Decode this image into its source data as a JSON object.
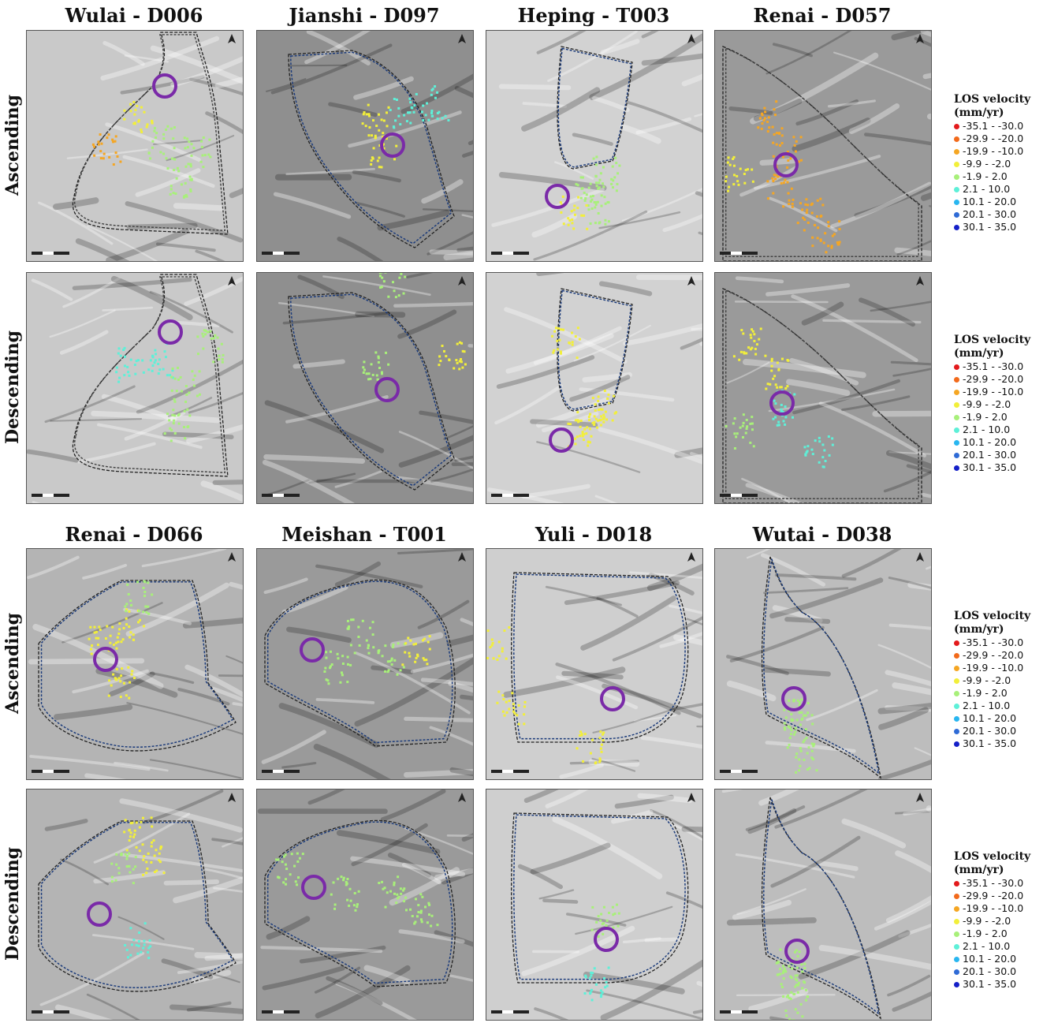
{
  "blocks": [
    {
      "titles": [
        "Wulai - D006",
        "Jianshi - D097",
        "Heping - T003",
        "Renai - D057"
      ],
      "rows": [
        {
          "label": "Ascending",
          "legend_title": [
            "LOS velocity",
            "(mm/yr)"
          ]
        },
        {
          "label": "Descending",
          "legend_title": [
            "LOS velocity",
            "(mm/yr)"
          ]
        }
      ]
    },
    {
      "titles": [
        "Renai - D066",
        "Meishan - T001",
        "Yuli - D018",
        "Wutai - D038"
      ],
      "rows": [
        {
          "label": "Ascending",
          "legend_title": [
            "LOS velocity",
            "(mm/yr)"
          ]
        },
        {
          "label": "Descending",
          "legend_title": [
            "LOS velocity",
            "(mm/yr)"
          ]
        }
      ]
    }
  ],
  "legend_classes": [
    {
      "label": "-35.1 - -30.0",
      "color": "#e31a1c"
    },
    {
      "label": "-29.9 - -20.0",
      "color": "#f26a1b"
    },
    {
      "label": "-19.9 - -10.0",
      "color": "#f5a623"
    },
    {
      "label": "-9.9 - -2.0",
      "color": "#f2ef3a"
    },
    {
      "label": "-1.9 - 2.0",
      "color": "#a8f07a"
    },
    {
      "label": "2.1 - 10.0",
      "color": "#5ef0d8"
    },
    {
      "label": "10.1 - 20.0",
      "color": "#29b6f0"
    },
    {
      "label": "20.1 - 30.0",
      "color": "#2f6bd6"
    },
    {
      "label": "30.1 - 35.0",
      "color": "#1520c8"
    }
  ],
  "colors": {
    "highlight_circle": "#7a2aa8",
    "landslide_outline": "#1a3a7a",
    "catchment_outline": "#222222"
  }
}
